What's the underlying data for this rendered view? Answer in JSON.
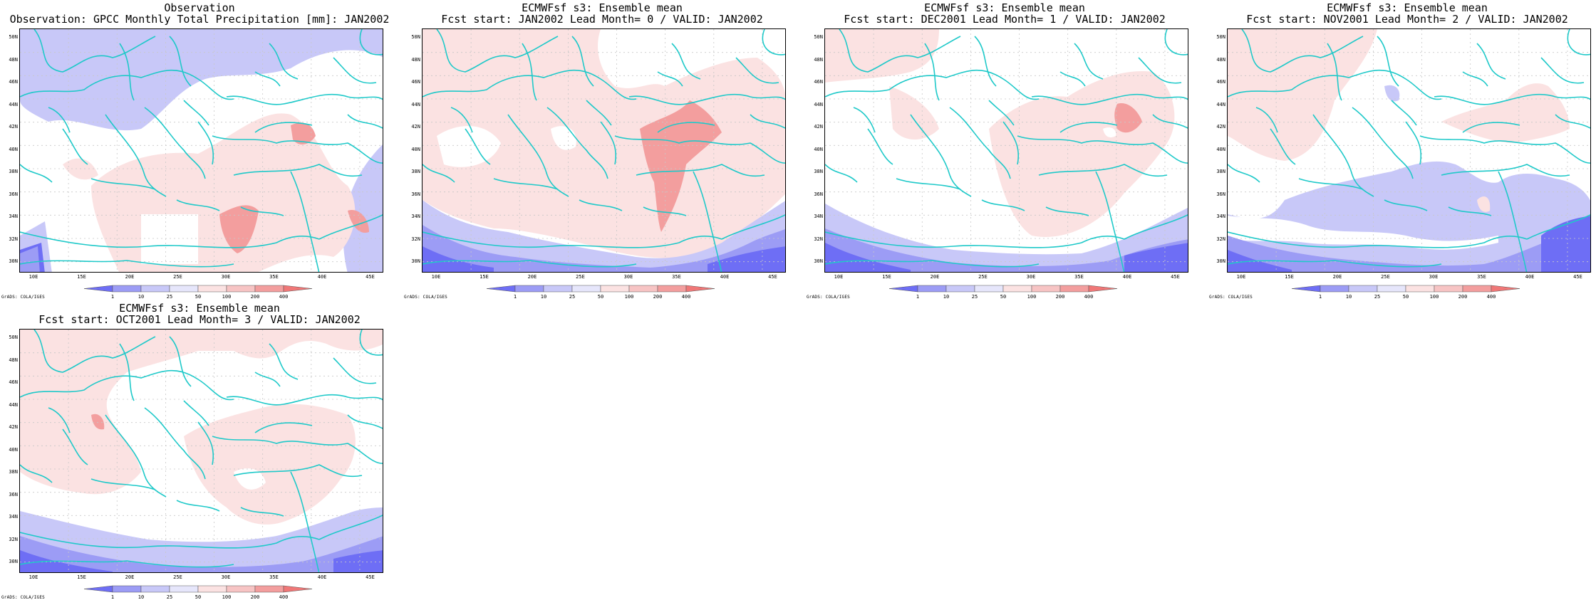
{
  "panels": [
    {
      "title1": "Observation",
      "title2": "Observation: GPCC Monthly Total Precipitation [mm]: JAN2002",
      "variant": "obs"
    },
    {
      "title1": "ECMWFsf s3: Ensemble mean",
      "title2": "Fcst start: JAN2002  Lead Month= 0 / VALID: JAN2002",
      "variant": "lead0"
    },
    {
      "title1": "ECMWFsf s3: Ensemble mean",
      "title2": "Fcst start: DEC2001  Lead Month= 1 / VALID: JAN2002",
      "variant": "lead1"
    },
    {
      "title1": "ECMWFsf s3: Ensemble mean",
      "title2": "Fcst start: NOV2001  Lead Month= 2 / VALID: JAN2002",
      "variant": "lead2"
    },
    {
      "title1": "ECMWFsf s3: Ensemble mean",
      "title2": "Fcst start: OCT2001  Lead Month= 3 / VALID: JAN2002",
      "variant": "lead3"
    }
  ],
  "lat_labels": [
    "50N",
    "48N",
    "46N",
    "44N",
    "42N",
    "40N",
    "38N",
    "36N",
    "34N",
    "32N",
    "30N"
  ],
  "lon_labels": [
    "10E",
    "15E",
    "20E",
    "25E",
    "30E",
    "35E",
    "40E",
    "45E"
  ],
  "colorbar_ticks": [
    "1",
    "10",
    "25",
    "50",
    "100",
    "200",
    "400"
  ],
  "colorbar_colors": [
    "#6e6ef5",
    "#9c9cf5",
    "#c8c8f8",
    "#e6e6fb",
    "#fbe2e2",
    "#f7c4c4",
    "#f39e9e",
    "#f07777"
  ],
  "coast_color": "#1fc9c9",
  "footer": "GrADS: COLA/IGES"
}
